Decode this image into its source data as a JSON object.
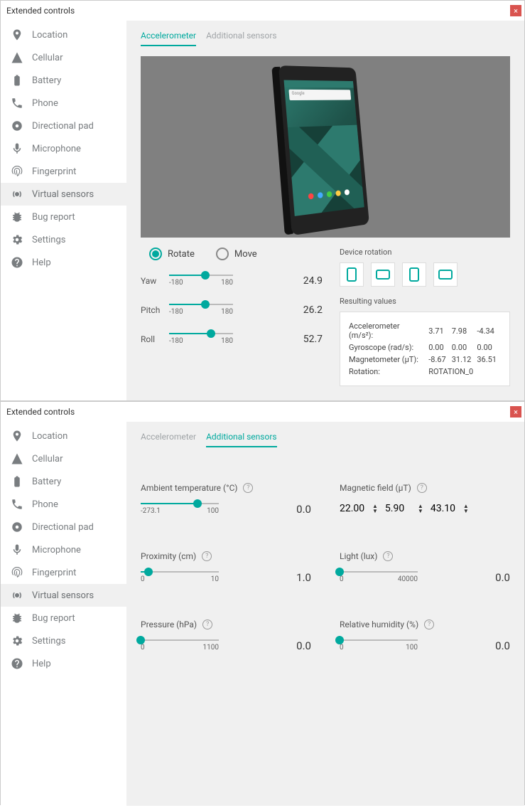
{
  "colors": {
    "accent": "#00a99e",
    "close": "#d9534f",
    "viewport": "#808080",
    "panel": "#f0f0f0"
  },
  "window_title": "Extended controls",
  "sidebar": {
    "items": [
      {
        "label": "Location",
        "icon": "location"
      },
      {
        "label": "Cellular",
        "icon": "cellular"
      },
      {
        "label": "Battery",
        "icon": "battery"
      },
      {
        "label": "Phone",
        "icon": "phone"
      },
      {
        "label": "Directional pad",
        "icon": "dpad"
      },
      {
        "label": "Microphone",
        "icon": "mic"
      },
      {
        "label": "Fingerprint",
        "icon": "fingerprint"
      },
      {
        "label": "Virtual sensors",
        "icon": "sensors",
        "active": true
      },
      {
        "label": "Bug report",
        "icon": "bug"
      },
      {
        "label": "Settings",
        "icon": "settings"
      },
      {
        "label": "Help",
        "icon": "help"
      }
    ]
  },
  "tabs": {
    "accel": "Accelerometer",
    "additional": "Additional sensors"
  },
  "mode": {
    "rotate": "Rotate",
    "move": "Move"
  },
  "rotation_sliders": {
    "yaw": {
      "label": "Yaw",
      "min": "-180",
      "max": "180",
      "value": "24.9",
      "pct": 57
    },
    "pitch": {
      "label": "Pitch",
      "min": "-180",
      "max": "180",
      "value": "26.2",
      "pct": 57
    },
    "roll": {
      "label": "Roll",
      "min": "-180",
      "max": "180",
      "value": "52.7",
      "pct": 65
    }
  },
  "device_rotation_label": "Device rotation",
  "resulting_values_label": "Resulting values",
  "results": {
    "accel": {
      "label": "Accelerometer (m/s²):",
      "x": "3.71",
      "y": "7.98",
      "z": "-4.34"
    },
    "gyro": {
      "label": "Gyroscope (rad/s):",
      "x": "0.00",
      "y": "0.00",
      "z": "0.00"
    },
    "mag": {
      "label": "Magnetometer (μT):",
      "x": "-8.67",
      "y": "31.12",
      "z": "36.51"
    },
    "rot": {
      "label": "Rotation:",
      "v": "ROTATION_0"
    }
  },
  "sensors": {
    "temp": {
      "label": "Ambient temperature (°C)",
      "min": "-273.1",
      "max": "100",
      "value": "0.0",
      "pct": 73
    },
    "magfield": {
      "label": "Magnetic field (μT)",
      "x": "22.00",
      "y": "5.90",
      "z": "43.10"
    },
    "prox": {
      "label": "Proximity (cm)",
      "min": "0",
      "max": "10",
      "value": "1.0",
      "pct": 10
    },
    "light": {
      "label": "Light (lux)",
      "min": "0",
      "max": "40000",
      "value": "0.0",
      "pct": 0
    },
    "pressure": {
      "label": "Pressure (hPa)",
      "min": "0",
      "max": "1100",
      "value": "0.0",
      "pct": 0
    },
    "humidity": {
      "label": "Relative humidity (%)",
      "min": "0",
      "max": "100",
      "value": "0.0",
      "pct": 0
    }
  },
  "phone_search": "Google"
}
